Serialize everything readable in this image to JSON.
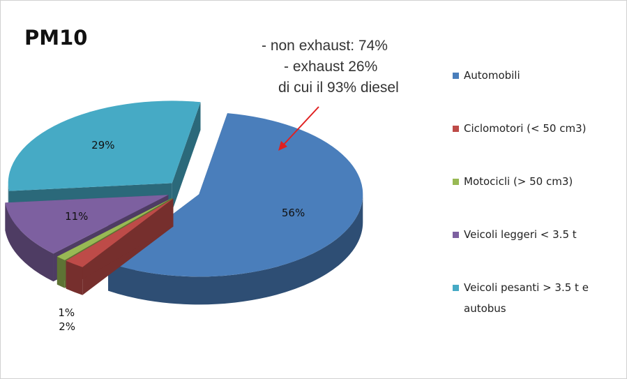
{
  "chart_data": {
    "type": "pie3d",
    "title": "PM10",
    "annotation": [
      "- non exhaust: 74%",
      "- exhaust 26%",
      "di cui il 93% diesel"
    ],
    "categories": [
      "Automobili",
      "Ciclomotori (< 50 cm3)",
      "Motocicli (> 50 cm3)",
      "Veicoli leggeri < 3.5 t",
      "Veicoli pesanti > 3.5 t e autobus"
    ],
    "values": [
      56,
      2,
      1,
      11,
      29
    ],
    "value_labels": [
      "56%",
      "2%",
      "1%",
      "11%",
      "29%"
    ],
    "colors": [
      "#4a7ebb",
      "#be4b48",
      "#98b954",
      "#7d60a0",
      "#46aac5"
    ],
    "legend": "right"
  }
}
